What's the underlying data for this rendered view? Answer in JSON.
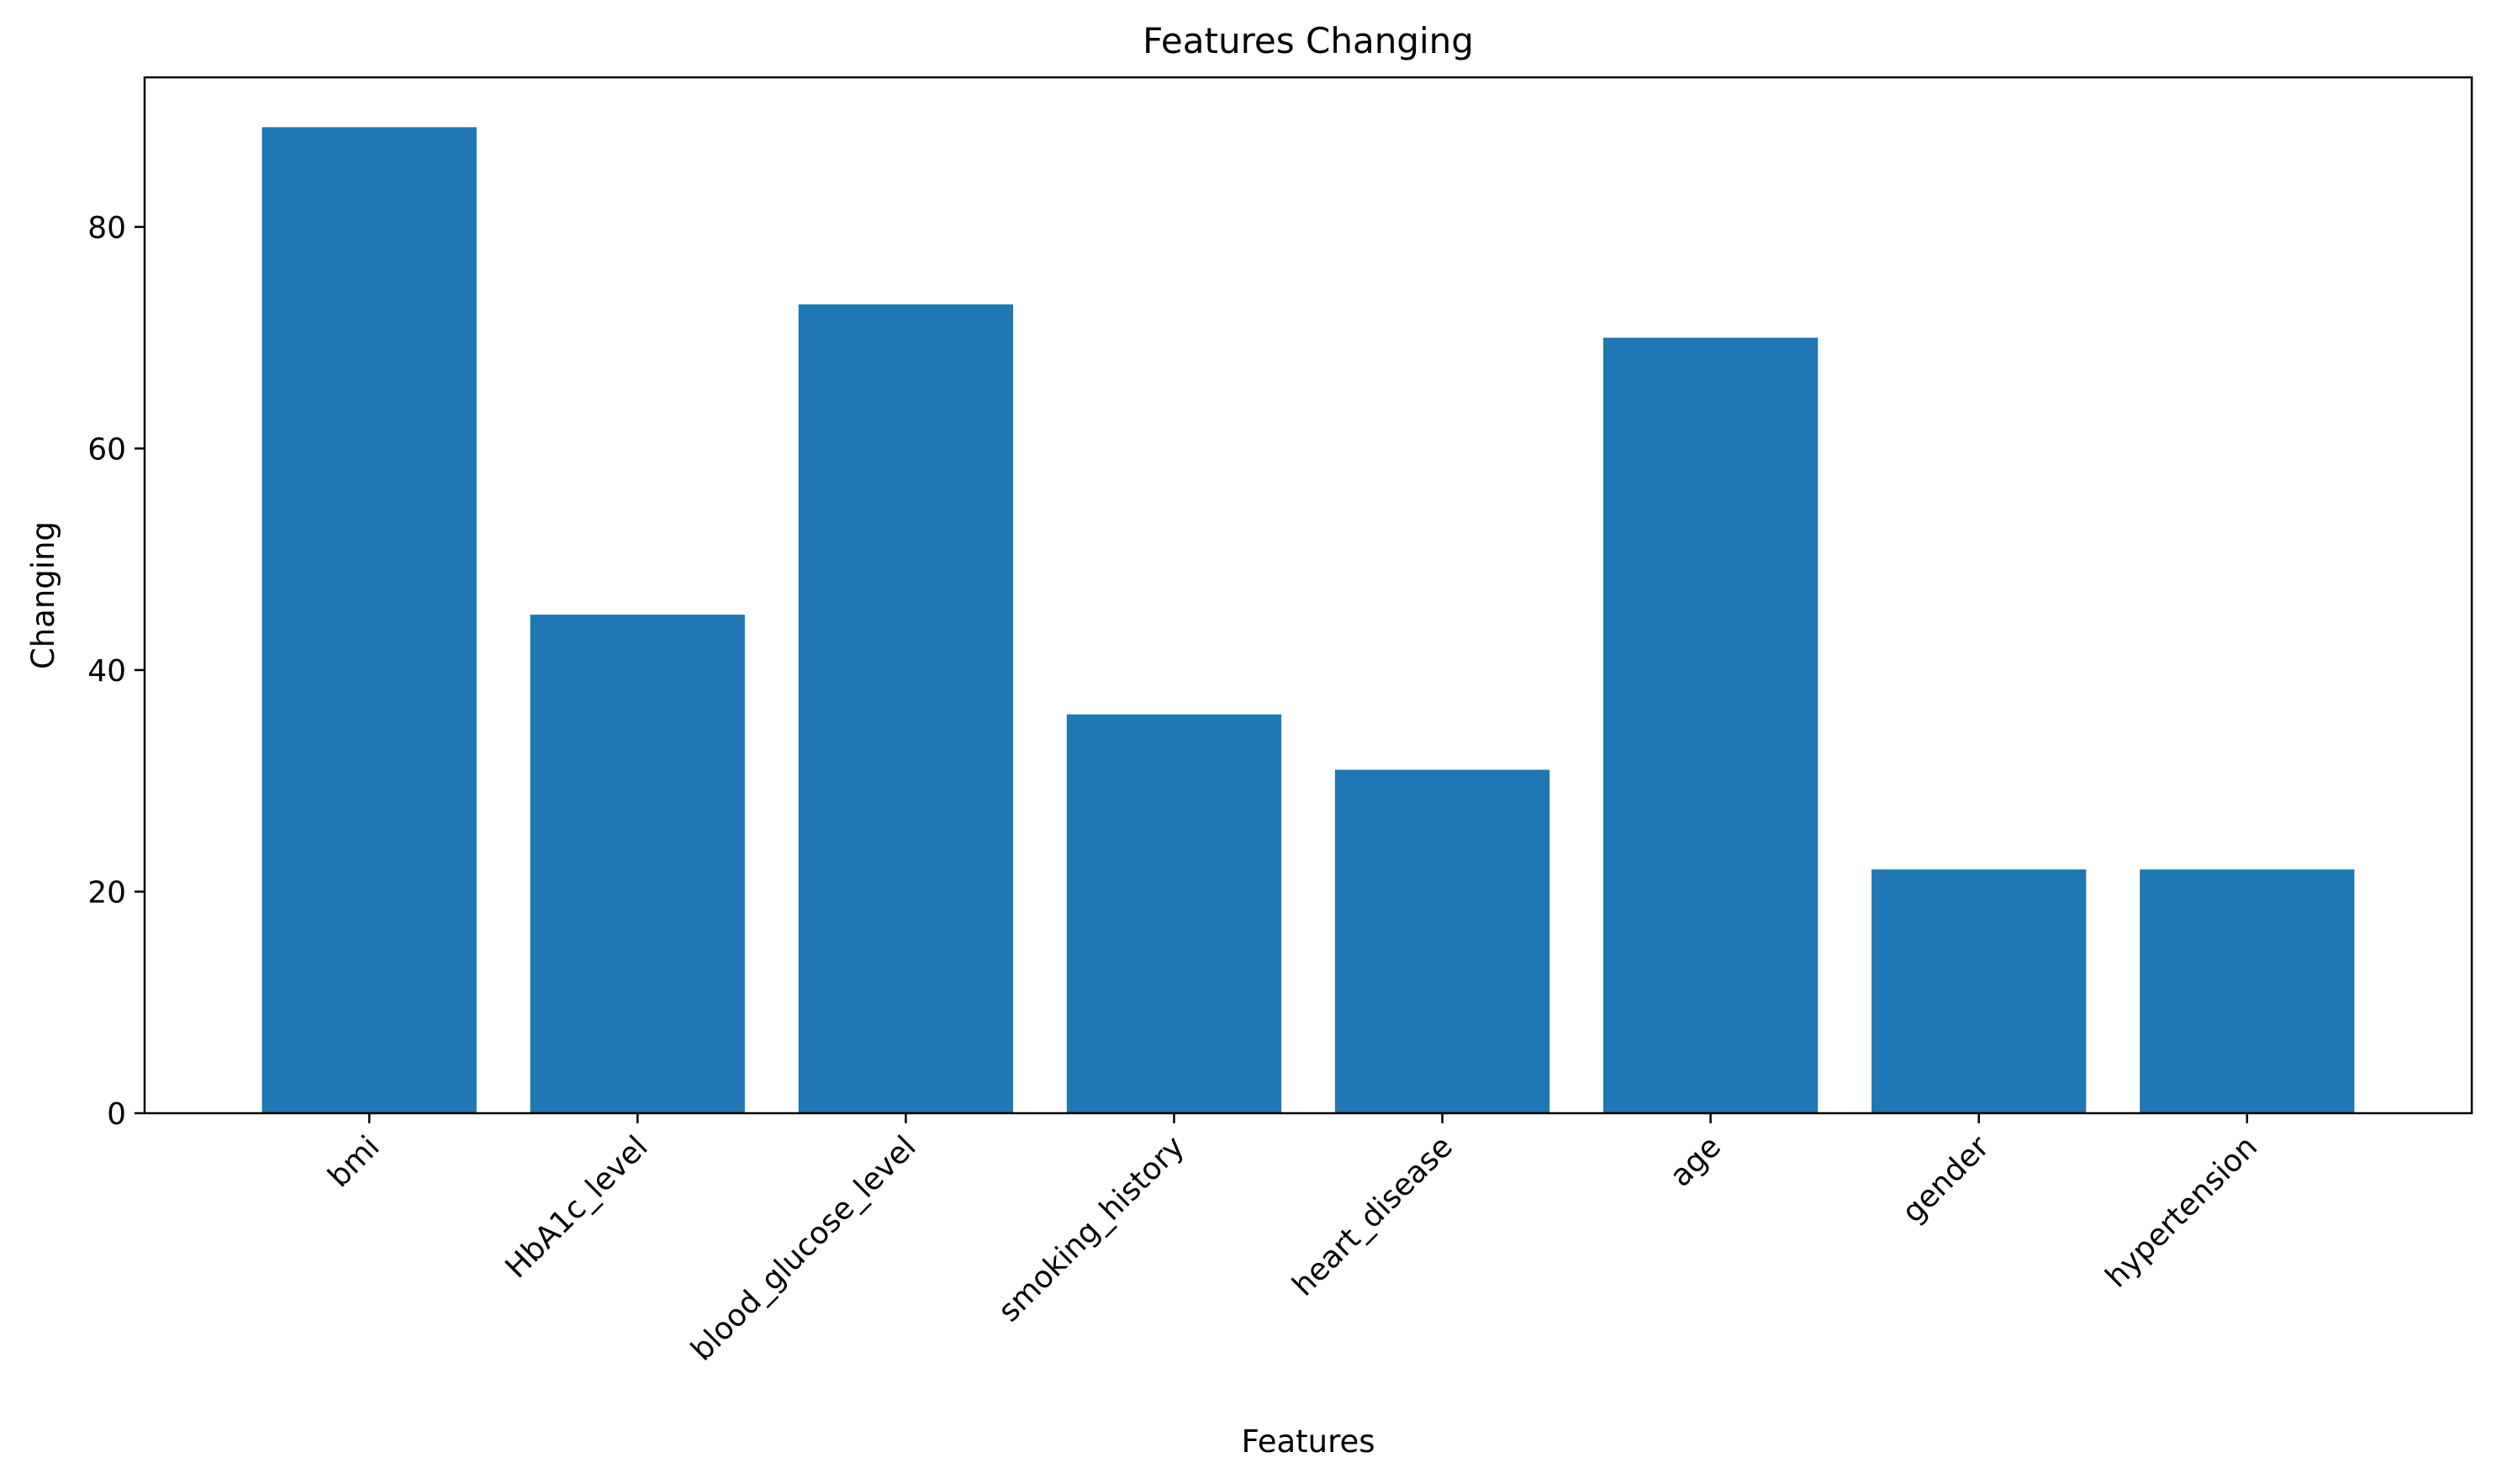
{
  "chart_data": {
    "type": "bar",
    "title": "Features Changing",
    "xlabel": "Features",
    "ylabel": "Changing",
    "categories": [
      "bmi",
      "HbA1c_level",
      "blood_glucose_level",
      "smoking_history",
      "heart_disease",
      "age",
      "gender",
      "hypertension"
    ],
    "values": [
      89,
      45,
      73,
      36,
      31,
      70,
      22,
      22
    ],
    "ylim": [
      0,
      93.5
    ],
    "yticks": [
      0,
      20,
      40,
      60,
      80
    ],
    "grid": false,
    "legend": "none",
    "bar_color": "#1f77b4",
    "x_tick_rotation_deg": 45
  }
}
